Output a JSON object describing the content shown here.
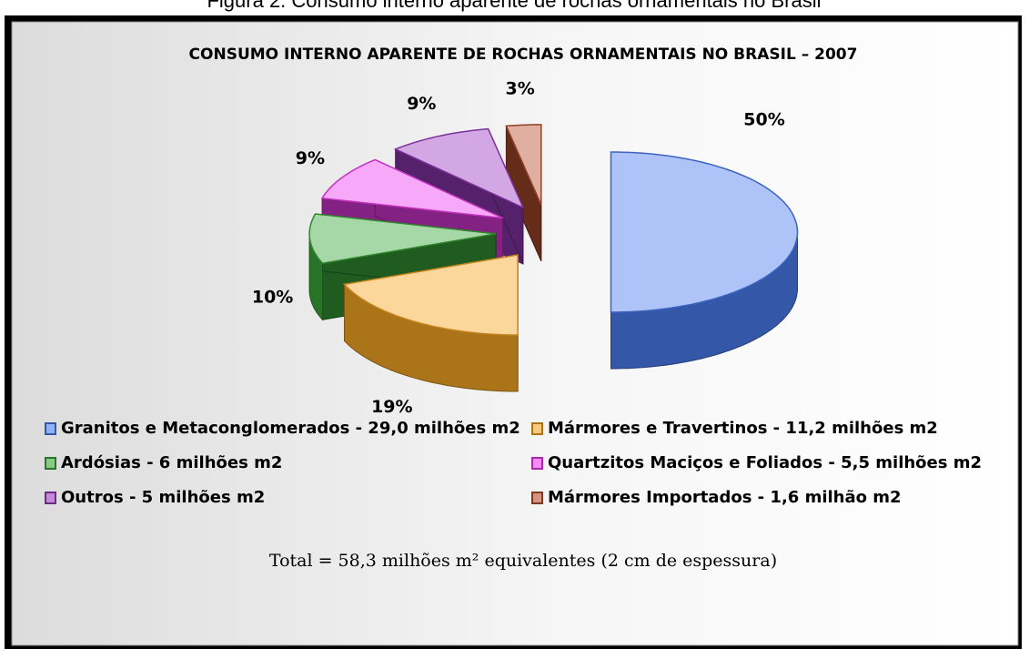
{
  "caption": "Figura 2. Consumo interno aparente de rochas ornamentais no Brasil",
  "chart_data": {
    "type": "pie",
    "title": "CONSUMO INTERNO APARENTE DE ROCHAS  ORNAMENTAIS NO BRASIL – 2007",
    "categories": [
      "Granitos e Metaconglomerados - 29,0 milhões m2",
      "Mármores e Travertinos - 11,2 milhões m2",
      "Ardósias - 6 milhões m2",
      "Quartzitos Maciços e Foliados - 5,5 milhões m2",
      "Outros - 5 milhões m2",
      "Mármores Importados - 1,6 milhão m2"
    ],
    "values": [
      50,
      19,
      10,
      9,
      9,
      3
    ],
    "value_labels": [
      "50%",
      "19%",
      "10%",
      "9%",
      "9%",
      "3%"
    ],
    "colors": [
      "#4a7cf0",
      "#f5a623",
      "#3aa63a",
      "#f03ef0",
      "#9a3cc0",
      "#b8502e"
    ],
    "note": "Total = 58,3 milhões m² equivalentes (2 cm de espessura)"
  }
}
